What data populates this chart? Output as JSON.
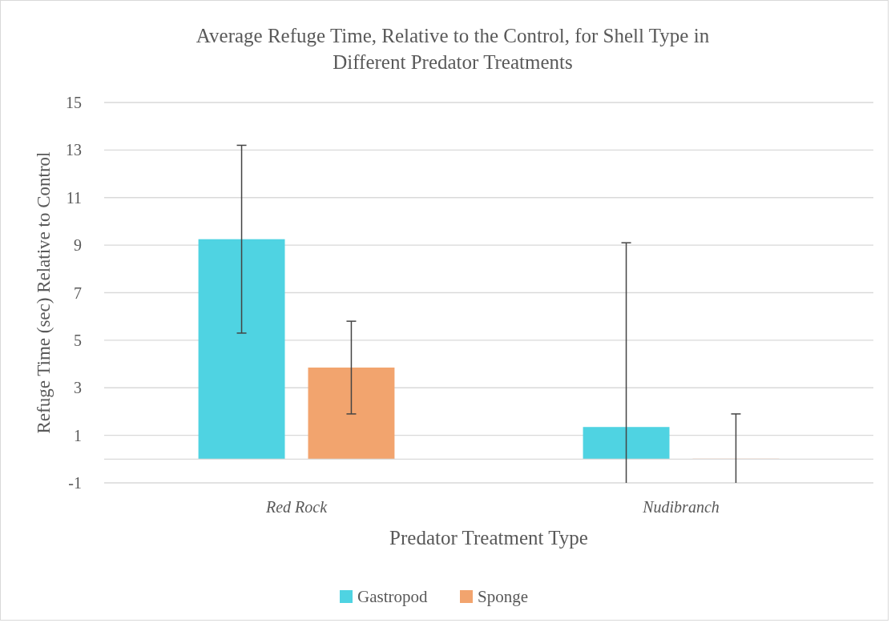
{
  "chart_data": {
    "type": "bar",
    "title": "Average Refuge Time, Relative to the Control, for Shell Type in Different Predator Treatments",
    "xlabel": "Predator Treatment Type",
    "ylabel": "Refuge Time (sec) Relative to Control",
    "categories": [
      "Red Rock",
      "Nudibranch"
    ],
    "series": [
      {
        "name": "Gastropod",
        "color": "#4fd3e2",
        "values": [
          9.25,
          1.35
        ],
        "errors": [
          [
            5.3,
            13.2
          ],
          [
            -1,
            9.1
          ]
        ]
      },
      {
        "name": "Sponge",
        "color": "#f2a46e",
        "values": [
          3.85,
          0
        ],
        "errors": [
          [
            1.9,
            5.8
          ],
          [
            -1,
            1.9
          ]
        ]
      }
    ],
    "ylim": [
      -1,
      15
    ],
    "yticks": [
      -1,
      1,
      3,
      5,
      7,
      9,
      11,
      13,
      15
    ],
    "grid": "y",
    "legend": "bottom"
  }
}
